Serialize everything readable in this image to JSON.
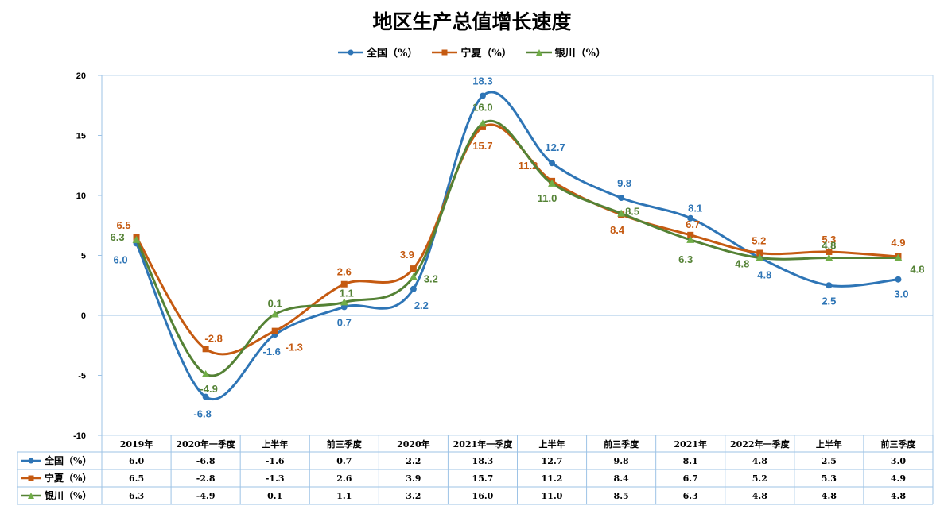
{
  "chart_data": {
    "type": "line",
    "title": "地区生产总值增长速度",
    "categories": [
      "2019年",
      "2020年一季度",
      "上半年",
      "前三季度",
      "2020年",
      "2021年一季度",
      "上半年",
      "前三季度",
      "2021年",
      "2022年一季度",
      "上半年",
      "前三季度"
    ],
    "series": [
      {
        "name": "全国（%）",
        "color": "#2E75B6",
        "marker": "circle",
        "values": [
          6.0,
          -6.8,
          -1.6,
          0.7,
          2.2,
          18.3,
          12.7,
          9.8,
          8.1,
          4.8,
          2.5,
          3.0
        ],
        "labels": [
          "6.0",
          "-6.8",
          "-1.6",
          "0.7",
          "2.2",
          "18.3",
          "12.7",
          "9.8",
          "8.1",
          "4.8",
          "2.5",
          "3.0"
        ]
      },
      {
        "name": "宁夏（%）",
        "color": "#C55A11",
        "marker": "square",
        "values": [
          6.5,
          -2.8,
          -1.3,
          2.6,
          3.9,
          15.7,
          11.2,
          8.4,
          6.7,
          5.2,
          5.3,
          4.9
        ],
        "labels": [
          "6.5",
          "-2.8",
          "-1.3",
          "2.6",
          "3.9",
          "15.7",
          "11.2",
          "8.4",
          "6.7",
          "5.2",
          "5.3",
          "4.9"
        ]
      },
      {
        "name": "银川（%）",
        "color": "#548235",
        "marker": "triangle",
        "values": [
          6.3,
          -4.9,
          0.1,
          1.1,
          3.2,
          16.0,
          11.0,
          8.5,
          6.3,
          4.8,
          4.8,
          4.8
        ],
        "labels": [
          "6.3",
          "-4.9",
          "0.1",
          "1.1",
          "3.2",
          "16.0",
          "11.0",
          "8.5",
          "6.3",
          "4.8",
          "4.8",
          "4.8"
        ]
      }
    ],
    "ylim": [
      -10,
      20
    ],
    "yticks": [
      "-10",
      "-5",
      "0",
      "5",
      "10",
      "15",
      "20"
    ],
    "legend": "top",
    "data_table": true,
    "grid": false
  }
}
